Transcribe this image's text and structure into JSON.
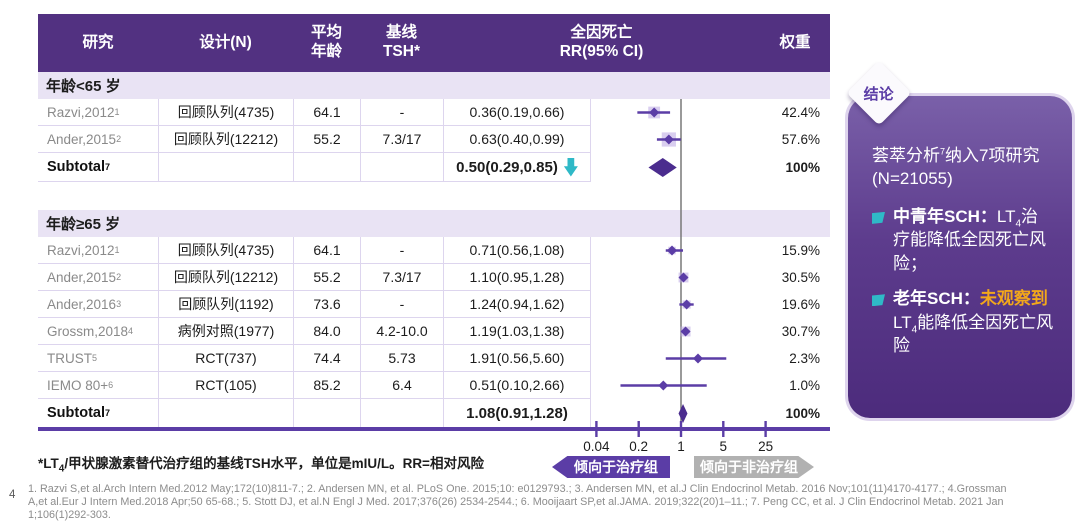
{
  "page": {
    "number": "4"
  },
  "table": {
    "headers": {
      "study": "研究",
      "design": "设计(N)",
      "age": "平均\n年龄",
      "tsh": "基线\nTSH*",
      "rr": "全因死亡\nRR(95% CI)",
      "weight": "权重"
    }
  },
  "chart_data": {
    "type": "forest",
    "x_scale": "log",
    "axis_ticks": [
      0.04,
      0.2,
      1,
      5,
      25
    ],
    "axis_tick_labels": [
      "0.04",
      "0.2",
      "1",
      "5",
      "25"
    ],
    "ref_line": 1,
    "groups": [
      {
        "label": "年龄<65 岁",
        "rows": [
          {
            "study": "Razvi,2012",
            "sup": "1",
            "design": "回顾队列(4735)",
            "age": "64.1",
            "tsh": "-",
            "rr_text": "0.36(0.19,0.66)",
            "rr": 0.36,
            "lo": 0.19,
            "hi": 0.66,
            "weight": "42.4%",
            "weight_pct": 42.4
          },
          {
            "study": "Ander,2015",
            "sup": "2",
            "design": "回顾队列(12212)",
            "age": "55.2",
            "tsh": "7.3/17",
            "rr_text": "0.63(0.40,0.99)",
            "rr": 0.63,
            "lo": 0.4,
            "hi": 0.99,
            "weight": "57.6%",
            "weight_pct": 57.6
          }
        ],
        "subtotal": {
          "label": "Subtotal",
          "sup": "7",
          "rr_text": "0.50(0.29,0.85)",
          "rr": 0.5,
          "lo": 0.29,
          "hi": 0.85,
          "weight": "100%",
          "arrow": true
        }
      },
      {
        "label": "年龄≥65 岁",
        "rows": [
          {
            "study": "Razvi,2012",
            "sup": "1",
            "design": "回顾队列(4735)",
            "age": "64.1",
            "tsh": "-",
            "rr_text": "0.71(0.56,1.08)",
            "rr": 0.71,
            "lo": 0.56,
            "hi": 1.08,
            "weight": "15.9%",
            "weight_pct": 15.9
          },
          {
            "study": "Ander,2015",
            "sup": "2",
            "design": "回顾队列(12212)",
            "age": "55.2",
            "tsh": "7.3/17",
            "rr_text": "1.10(0.95,1.28)",
            "rr": 1.1,
            "lo": 0.95,
            "hi": 1.28,
            "weight": "30.5%",
            "weight_pct": 30.5
          },
          {
            "study": "Ander,2016",
            "sup": "3",
            "design": "回顾队列(1192)",
            "age": "73.6",
            "tsh": "-",
            "rr_text": "1.24(0.94,1.62)",
            "rr": 1.24,
            "lo": 0.94,
            "hi": 1.62,
            "weight": "19.6%",
            "weight_pct": 19.6
          },
          {
            "study": "Grossm,2018",
            "sup": "4",
            "design": "病例对照(1977)",
            "age": "84.0",
            "tsh": "4.2-10.0",
            "rr_text": "1.19(1.03,1.38)",
            "rr": 1.19,
            "lo": 1.03,
            "hi": 1.38,
            "weight": "30.7%",
            "weight_pct": 30.7
          },
          {
            "study": "TRUST",
            "sup": "5",
            "design": "RCT(737)",
            "age": "74.4",
            "tsh": "5.73",
            "rr_text": "1.91(0.56,5.60)",
            "rr": 1.91,
            "lo": 0.56,
            "hi": 5.6,
            "weight": "2.3%",
            "weight_pct": 2.3
          },
          {
            "study": "IEMO 80+",
            "sup": "6",
            "design": "RCT(105)",
            "age": "85.2",
            "tsh": "6.4",
            "rr_text": "0.51(0.10,2.66)",
            "rr": 0.51,
            "lo": 0.1,
            "hi": 2.66,
            "weight": "1.0%",
            "weight_pct": 1.0
          }
        ],
        "subtotal": {
          "label": "Subtotal",
          "sup": "7",
          "rr_text": "1.08(0.91,1.28)",
          "rr": 1.08,
          "lo": 0.91,
          "hi": 1.28,
          "weight": "100%",
          "arrow": false
        }
      }
    ]
  },
  "badges": {
    "left": "倾向于治疗组",
    "right": "倾向于非治疗组"
  },
  "footnote": {
    "parts": [
      {
        "text": "*LT"
      },
      {
        "text": "4",
        "sub": true
      },
      {
        "text": "/甲状腺激素替代治疗组的基线TSH水平，单位是mIU/L。RR=相对风险"
      }
    ]
  },
  "references": [
    "1. Razvi S,et al.Arch Intern Med.2012 May;172(10)811-7.;  2. Andersen MN, et al. PLoS One. 2015;10: e0129793.;  3. Andersen MN, et al.J Clin Endocrinol Metab. 2016 Nov;101(11)4170-4177.;  4.Grossman",
    "A,et al.Eur J Intern Med.2018 Apr;50 65-68.;  5. Stott DJ, et al.N Engl J Med. 2017;376(26) 2534-2544.;  6. Mooijaart SP,et al.JAMA. 2019;322(20)1–11.;  7. Peng CC, et al. J Clin Endocrinol Metab. 2021 Jan",
    "1;106(1)292-303."
  ],
  "conclusion": {
    "badge": "结论",
    "intro_parts": [
      {
        "text": "荟萃分析"
      },
      {
        "text": "7",
        "sup": true
      },
      {
        "text": "纳入7项研究(N=21055)"
      }
    ],
    "bullets": [
      {
        "parts": [
          {
            "text": "中青年SCH：",
            "bold": true
          },
          {
            "text": "LT"
          },
          {
            "text": "4",
            "sub": true
          },
          {
            "text": "治疗能降低全因死亡风险；"
          }
        ]
      },
      {
        "parts": [
          {
            "text": "老年SCH：",
            "bold": true
          },
          {
            "text": "未观察到",
            "highlight": true
          },
          {
            "text": "LT"
          },
          {
            "text": "4",
            "sub": true
          },
          {
            "text": "能降低全因死亡风险"
          }
        ]
      }
    ]
  },
  "colors": {
    "header_bg": "#523181",
    "section_bg": "#e9e3f4",
    "accent": "#5b3da6",
    "subtotal_diamond": "#4b2c8e",
    "weight_box": "#b9a5e2",
    "ref_line": "#6f6f6f",
    "teal_arrow": "#2fb9c7",
    "highlight": "#f2a71b",
    "badge_gray": "#b1b1b1"
  }
}
